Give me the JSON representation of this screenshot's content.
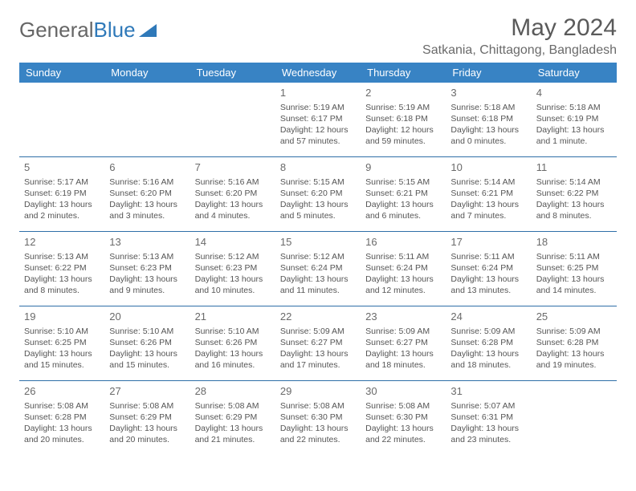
{
  "brand": {
    "part1": "General",
    "part2": "Blue"
  },
  "title": "May 2024",
  "location": "Satkania, Chittagong, Bangladesh",
  "colors": {
    "header_bg": "#3883c4",
    "header_text": "#ffffff",
    "sep": "#2f6fa8",
    "text": "#555555",
    "title_text": "#5a5a5a"
  },
  "day_names": [
    "Sunday",
    "Monday",
    "Tuesday",
    "Wednesday",
    "Thursday",
    "Friday",
    "Saturday"
  ],
  "weeks": [
    [
      null,
      null,
      null,
      {
        "n": "1",
        "sr": "5:19 AM",
        "ss": "6:17 PM",
        "dl": "12 hours and 57 minutes."
      },
      {
        "n": "2",
        "sr": "5:19 AM",
        "ss": "6:18 PM",
        "dl": "12 hours and 59 minutes."
      },
      {
        "n": "3",
        "sr": "5:18 AM",
        "ss": "6:18 PM",
        "dl": "13 hours and 0 minutes."
      },
      {
        "n": "4",
        "sr": "5:18 AM",
        "ss": "6:19 PM",
        "dl": "13 hours and 1 minute."
      }
    ],
    [
      {
        "n": "5",
        "sr": "5:17 AM",
        "ss": "6:19 PM",
        "dl": "13 hours and 2 minutes."
      },
      {
        "n": "6",
        "sr": "5:16 AM",
        "ss": "6:20 PM",
        "dl": "13 hours and 3 minutes."
      },
      {
        "n": "7",
        "sr": "5:16 AM",
        "ss": "6:20 PM",
        "dl": "13 hours and 4 minutes."
      },
      {
        "n": "8",
        "sr": "5:15 AM",
        "ss": "6:20 PM",
        "dl": "13 hours and 5 minutes."
      },
      {
        "n": "9",
        "sr": "5:15 AM",
        "ss": "6:21 PM",
        "dl": "13 hours and 6 minutes."
      },
      {
        "n": "10",
        "sr": "5:14 AM",
        "ss": "6:21 PM",
        "dl": "13 hours and 7 minutes."
      },
      {
        "n": "11",
        "sr": "5:14 AM",
        "ss": "6:22 PM",
        "dl": "13 hours and 8 minutes."
      }
    ],
    [
      {
        "n": "12",
        "sr": "5:13 AM",
        "ss": "6:22 PM",
        "dl": "13 hours and 8 minutes."
      },
      {
        "n": "13",
        "sr": "5:13 AM",
        "ss": "6:23 PM",
        "dl": "13 hours and 9 minutes."
      },
      {
        "n": "14",
        "sr": "5:12 AM",
        "ss": "6:23 PM",
        "dl": "13 hours and 10 minutes."
      },
      {
        "n": "15",
        "sr": "5:12 AM",
        "ss": "6:24 PM",
        "dl": "13 hours and 11 minutes."
      },
      {
        "n": "16",
        "sr": "5:11 AM",
        "ss": "6:24 PM",
        "dl": "13 hours and 12 minutes."
      },
      {
        "n": "17",
        "sr": "5:11 AM",
        "ss": "6:24 PM",
        "dl": "13 hours and 13 minutes."
      },
      {
        "n": "18",
        "sr": "5:11 AM",
        "ss": "6:25 PM",
        "dl": "13 hours and 14 minutes."
      }
    ],
    [
      {
        "n": "19",
        "sr": "5:10 AM",
        "ss": "6:25 PM",
        "dl": "13 hours and 15 minutes."
      },
      {
        "n": "20",
        "sr": "5:10 AM",
        "ss": "6:26 PM",
        "dl": "13 hours and 15 minutes."
      },
      {
        "n": "21",
        "sr": "5:10 AM",
        "ss": "6:26 PM",
        "dl": "13 hours and 16 minutes."
      },
      {
        "n": "22",
        "sr": "5:09 AM",
        "ss": "6:27 PM",
        "dl": "13 hours and 17 minutes."
      },
      {
        "n": "23",
        "sr": "5:09 AM",
        "ss": "6:27 PM",
        "dl": "13 hours and 18 minutes."
      },
      {
        "n": "24",
        "sr": "5:09 AM",
        "ss": "6:28 PM",
        "dl": "13 hours and 18 minutes."
      },
      {
        "n": "25",
        "sr": "5:09 AM",
        "ss": "6:28 PM",
        "dl": "13 hours and 19 minutes."
      }
    ],
    [
      {
        "n": "26",
        "sr": "5:08 AM",
        "ss": "6:28 PM",
        "dl": "13 hours and 20 minutes."
      },
      {
        "n": "27",
        "sr": "5:08 AM",
        "ss": "6:29 PM",
        "dl": "13 hours and 20 minutes."
      },
      {
        "n": "28",
        "sr": "5:08 AM",
        "ss": "6:29 PM",
        "dl": "13 hours and 21 minutes."
      },
      {
        "n": "29",
        "sr": "5:08 AM",
        "ss": "6:30 PM",
        "dl": "13 hours and 22 minutes."
      },
      {
        "n": "30",
        "sr": "5:08 AM",
        "ss": "6:30 PM",
        "dl": "13 hours and 22 minutes."
      },
      {
        "n": "31",
        "sr": "5:07 AM",
        "ss": "6:31 PM",
        "dl": "13 hours and 23 minutes."
      },
      null
    ]
  ],
  "labels": {
    "sunrise": "Sunrise:",
    "sunset": "Sunset:",
    "daylight": "Daylight:"
  }
}
